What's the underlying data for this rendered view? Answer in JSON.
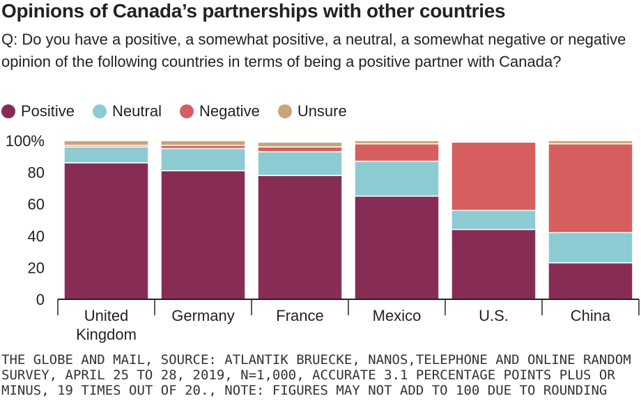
{
  "title": "Opinions of Canada’s partnerships with other countries",
  "subtitle": "Q: Do you have a positive, a somewhat positive, a neutral, a somewhat negative or negative opinion of the following countries in terms of being a positive partner with Canada?",
  "legend": [
    {
      "label": "Positive",
      "color": "#872d55"
    },
    {
      "label": "Neutral",
      "color": "#8dcbd3"
    },
    {
      "label": "Negative",
      "color": "#d65e5e"
    },
    {
      "label": "Unsure",
      "color": "#c9a47a"
    }
  ],
  "footer": "THE GLOBE AND MAIL, SOURCE: ATLANTIK BRUECKE, NANOS,TELEPHONE AND ONLINE RANDOM SURVEY, APRIL 25 TO 28, 2019, N=1,000, ACCURATE 3.1 PERCENTAGE POINTS PLUS OR MINUS, 19 TIMES OUT OF 20., NOTE: FIGURES MAY NOT ADD TO 100 DUE TO ROUNDING",
  "chart_data": {
    "type": "bar",
    "stacked": true,
    "categories": [
      [
        "United",
        "Kingdom"
      ],
      [
        "Germany"
      ],
      [
        "France"
      ],
      [
        "Mexico"
      ],
      [
        "U.S."
      ],
      [
        "China"
      ]
    ],
    "series": [
      {
        "name": "Positive",
        "color": "#872d55",
        "values": [
          86,
          81,
          78,
          65,
          44,
          23
        ]
      },
      {
        "name": "Neutral",
        "color": "#8dcbd3",
        "values": [
          10,
          14,
          15,
          22,
          12,
          19
        ]
      },
      {
        "name": "Negative",
        "color": "#d65e5e",
        "values": [
          1,
          2,
          3,
          11,
          43,
          56
        ]
      },
      {
        "name": "Unsure",
        "color": "#c9a47a",
        "values": [
          3,
          3,
          3,
          2,
          0,
          2
        ]
      }
    ],
    "ylim": [
      0,
      100
    ],
    "yticks": [
      "0",
      "20",
      "40",
      "60",
      "80",
      "100%"
    ],
    "ytick_values": [
      0,
      20,
      40,
      60,
      80,
      100
    ],
    "xlabel": "",
    "ylabel": "",
    "grid": false
  }
}
